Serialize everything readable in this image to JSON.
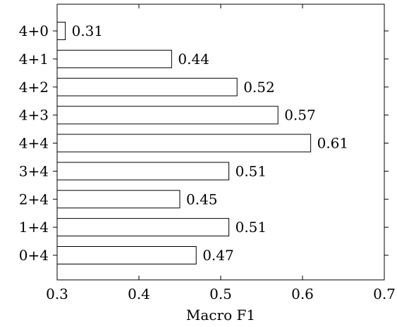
{
  "chart_data": {
    "type": "bar",
    "orientation": "horizontal",
    "categories": [
      "4+0",
      "4+1",
      "4+2",
      "4+3",
      "4+4",
      "3+4",
      "2+4",
      "1+4",
      "0+4"
    ],
    "values": [
      0.31,
      0.44,
      0.52,
      0.57,
      0.61,
      0.51,
      0.45,
      0.51,
      0.47
    ],
    "value_labels": [
      "0.31",
      "0.44",
      "0.52",
      "0.57",
      "0.61",
      "0.51",
      "0.45",
      "0.51",
      "0.47"
    ],
    "xlabel": "Macro F1",
    "ylabel": "",
    "xlim": [
      0.3,
      0.7
    ],
    "xticks": [
      0.3,
      0.4,
      0.5,
      0.6,
      0.7
    ],
    "xtick_labels": [
      "0.3",
      "0.4",
      "0.5",
      "0.6",
      "0.7"
    ],
    "bar_fill": "#ffffff",
    "bar_stroke": "#000000",
    "grid": false
  }
}
